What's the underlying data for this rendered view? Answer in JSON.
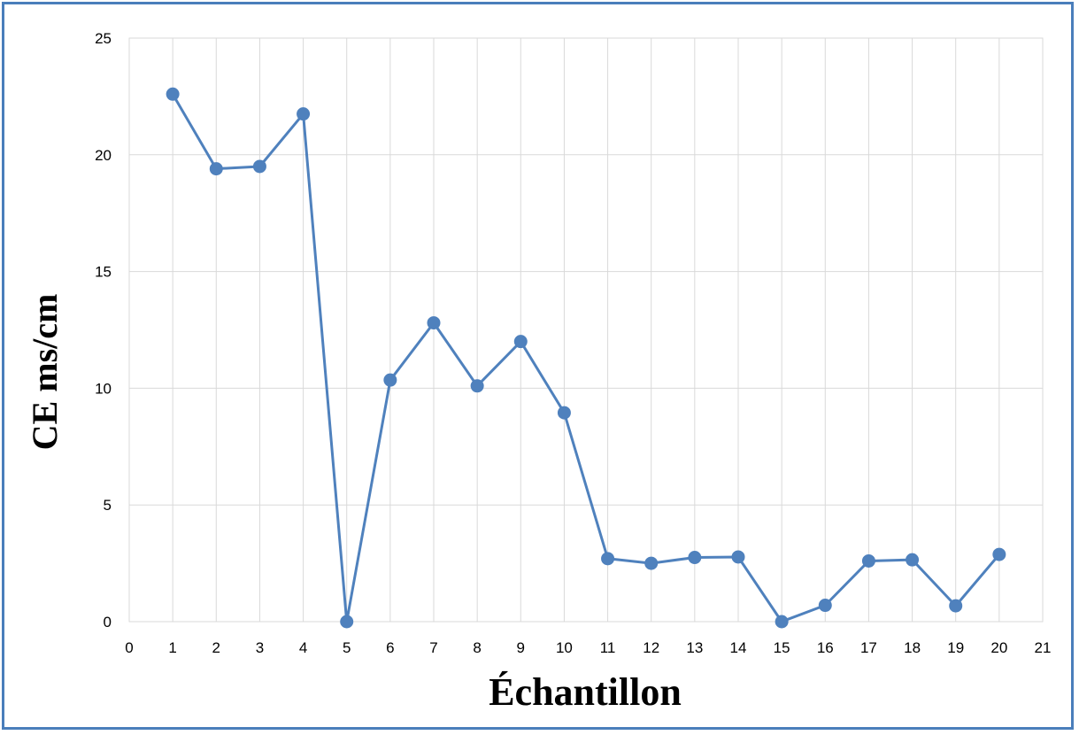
{
  "chart_data": {
    "type": "line",
    "xlabel": "Échantillon",
    "ylabel": "CE ms/cm",
    "xlim": [
      0,
      21
    ],
    "ylim": [
      0,
      25
    ],
    "x_ticks": [
      0,
      1,
      2,
      3,
      4,
      5,
      6,
      7,
      8,
      9,
      10,
      11,
      12,
      13,
      14,
      15,
      16,
      17,
      18,
      19,
      20,
      21
    ],
    "y_ticks": [
      0,
      5,
      10,
      15,
      20,
      25
    ],
    "grid": true,
    "legend": "none",
    "series": [
      {
        "color": "#4f81bd",
        "marker": "circle",
        "x": [
          1,
          2,
          3,
          4,
          5,
          6,
          7,
          8,
          9,
          10,
          11,
          12,
          13,
          14,
          15,
          16,
          17,
          18,
          19,
          20
        ],
        "y": [
          22.6,
          19.4,
          19.5,
          21.75,
          0,
          10.35,
          12.8,
          10.1,
          12.0,
          8.95,
          2.7,
          2.5,
          2.75,
          2.77,
          0,
          0.7,
          2.6,
          2.65,
          0.68,
          2.88
        ]
      }
    ]
  }
}
